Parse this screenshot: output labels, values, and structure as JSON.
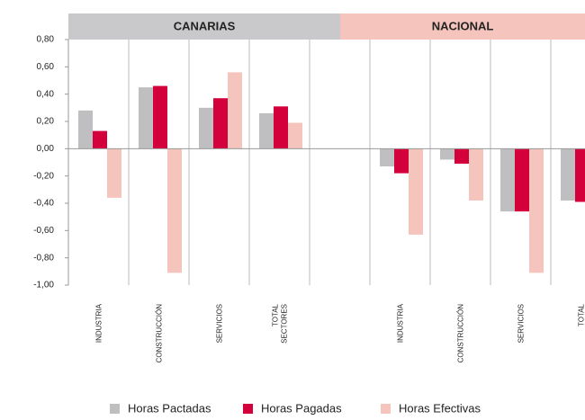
{
  "chart_data": {
    "type": "bar",
    "groups": [
      "CANARIAS",
      "NACIONAL"
    ],
    "categories": [
      "INDUSTRIA",
      "CONSTRUCCIÓN",
      "SERVICIOS",
      "TOTAL SECTORES",
      null,
      "INDUSTRIA",
      "CONSTRUCCIÓN",
      "SERVICIOS",
      "TOTAL"
    ],
    "series": [
      {
        "name": "Horas Pactadas",
        "color": "#bfbfc1",
        "values": [
          0.28,
          0.45,
          0.3,
          0.26,
          null,
          -0.13,
          -0.08,
          -0.46,
          -0.38
        ]
      },
      {
        "name": "Horas Pagadas",
        "color": "#d4003b",
        "values": [
          0.13,
          0.46,
          0.37,
          0.31,
          null,
          -0.18,
          -0.11,
          -0.46,
          -0.39
        ]
      },
      {
        "name": "Horas Efectivas",
        "color": "#f5c4bc",
        "values": [
          -0.36,
          -0.91,
          0.56,
          0.19,
          null,
          -0.63,
          -0.38,
          -0.91,
          null
        ]
      }
    ],
    "ylim": [
      -1.0,
      0.8
    ],
    "yticks": [
      {
        "value": 0.8,
        "label": "0,80"
      },
      {
        "value": 0.6,
        "label": "0,60"
      },
      {
        "value": 0.4,
        "label": "0,40"
      },
      {
        "value": 0.2,
        "label": "0,20"
      },
      {
        "value": 0,
        "label": "0,00"
      },
      {
        "value": -0.2,
        "label": "-0,20"
      },
      {
        "value": -0.4,
        "label": "-0,40"
      },
      {
        "value": -0.6,
        "label": "-0,60"
      },
      {
        "value": -0.8,
        "label": "-0,80"
      },
      {
        "value": -1.0,
        "label": "-1,00"
      }
    ],
    "legend": "bottom"
  }
}
